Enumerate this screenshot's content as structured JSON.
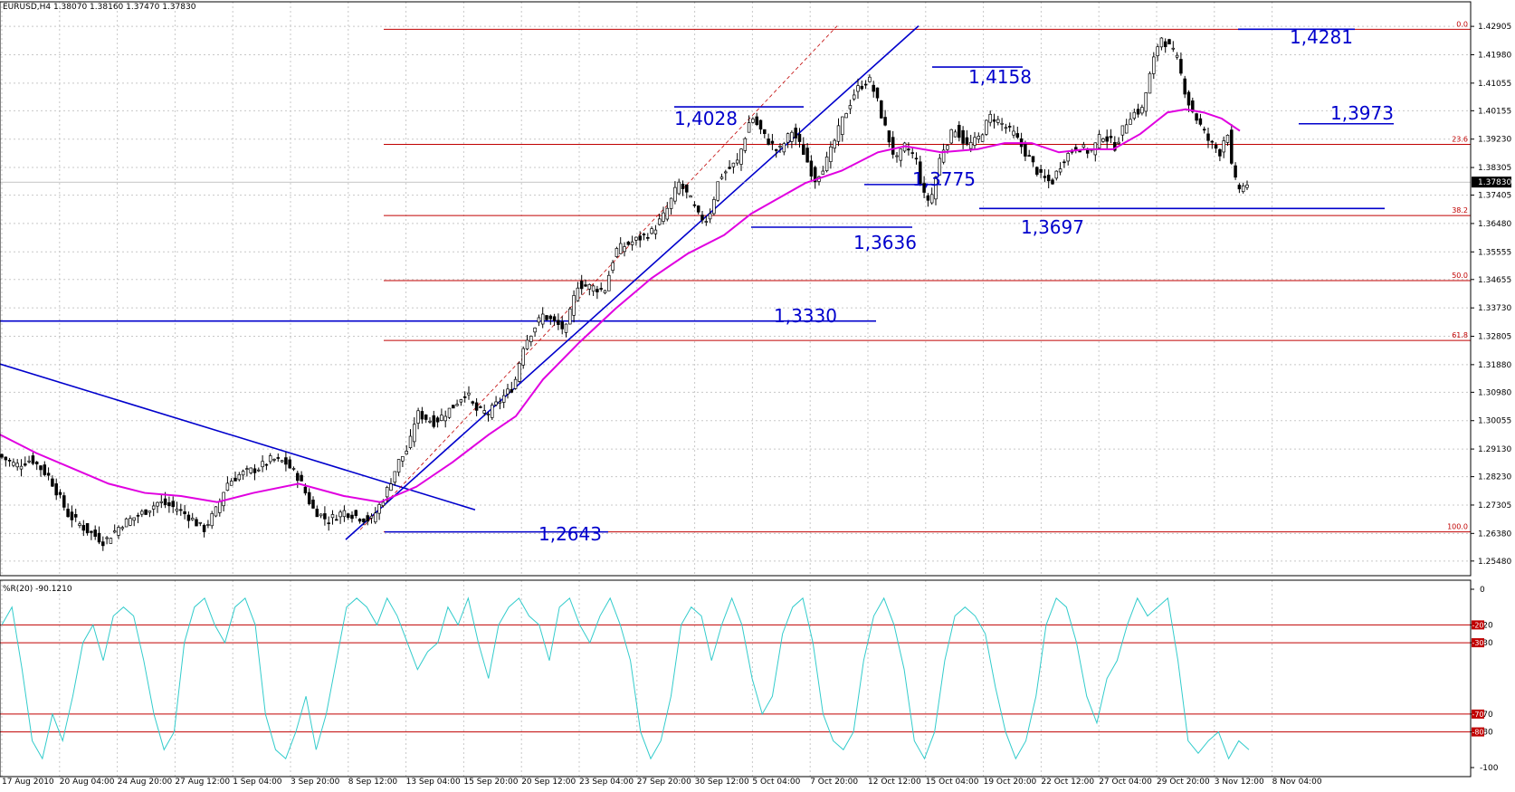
{
  "header": {
    "symbol": "EURUSD,H4",
    "ohlc": "1.38070 1.38160 1.37470 1.37830"
  },
  "chart_data": [
    {
      "type": "candlestick",
      "title": "EURUSD,H4  1.38070 1.38160 1.37470 1.37830",
      "ylim": [
        1.2518,
        1.4341
      ],
      "y_ticks": [
        "1.42905",
        "1.41980",
        "1.41055",
        "1.40155",
        "1.39230",
        "1.38305",
        "1.37405",
        "1.36480",
        "1.35555",
        "1.34655",
        "1.33730",
        "1.32805",
        "1.31880",
        "1.30980",
        "1.30055",
        "1.29130",
        "1.28230",
        "1.27305",
        "1.26380",
        "1.25480"
      ],
      "current_price": "1.37830",
      "time_labels": [
        "17 Aug 2010",
        "20 Aug 04:00",
        "24 Aug 20:00",
        "27 Aug 12:00",
        "1 Sep 04:00",
        "3 Sep 20:00",
        "8 Sep 12:00",
        "13 Sep 04:00",
        "15 Sep 20:00",
        "20 Sep 12:00",
        "23 Sep 04:00",
        "27 Sep 20:00",
        "30 Sep 12:00",
        "5 Oct 04:00",
        "7 Oct 20:00",
        "12 Oct 12:00",
        "15 Oct 04:00",
        "19 Oct 20:00",
        "22 Oct 12:00",
        "27 Oct 04:00",
        "29 Oct 20:00",
        "3 Nov 12:00",
        "8 Nov 04:00"
      ],
      "price_path": [
        [
          0,
          1.289
        ],
        [
          18,
          1.286
        ],
        [
          35,
          1.288
        ],
        [
          55,
          1.282
        ],
        [
          75,
          1.27
        ],
        [
          95,
          1.265
        ],
        [
          115,
          1.261
        ],
        [
          135,
          1.267
        ],
        [
          155,
          1.27
        ],
        [
          175,
          1.274
        ],
        [
          195,
          1.272
        ],
        [
          210,
          1.269
        ],
        [
          225,
          1.265
        ],
        [
          240,
          1.272
        ],
        [
          250,
          1.28
        ],
        [
          265,
          1.283
        ],
        [
          285,
          1.285
        ],
        [
          300,
          1.288
        ],
        [
          315,
          1.287
        ],
        [
          330,
          1.282
        ],
        [
          345,
          1.272
        ],
        [
          362,
          1.268
        ],
        [
          380,
          1.271
        ],
        [
          398,
          1.269
        ],
        [
          410,
          1.268
        ],
        [
          425,
          1.276
        ],
        [
          440,
          1.287
        ],
        [
          452,
          1.292
        ],
        [
          460,
          1.303
        ],
        [
          480,
          1.3
        ],
        [
          500,
          1.305
        ],
        [
          515,
          1.31
        ],
        [
          525,
          1.304
        ],
        [
          540,
          1.303
        ],
        [
          555,
          1.308
        ],
        [
          568,
          1.312
        ],
        [
          578,
          1.325
        ],
        [
          588,
          1.33
        ],
        [
          600,
          1.335
        ],
        [
          615,
          1.332
        ],
        [
          625,
          1.33
        ],
        [
          638,
          1.345
        ],
        [
          655,
          1.344
        ],
        [
          668,
          1.343
        ],
        [
          680,
          1.356
        ],
        [
          700,
          1.359
        ],
        [
          720,
          1.362
        ],
        [
          735,
          1.368
        ],
        [
          750,
          1.378
        ],
        [
          762,
          1.373
        ],
        [
          772,
          1.367
        ],
        [
          782,
          1.366
        ],
        [
          795,
          1.38
        ],
        [
          815,
          1.385
        ],
        [
          830,
          1.4
        ],
        [
          845,
          1.393
        ],
        [
          860,
          1.388
        ],
        [
          875,
          1.395
        ],
        [
          888,
          1.388
        ],
        [
          900,
          1.379
        ],
        [
          915,
          1.386
        ],
        [
          930,
          1.398
        ],
        [
          945,
          1.408
        ],
        [
          960,
          1.412
        ],
        [
          968,
          1.406
        ],
        [
          978,
          1.396
        ],
        [
          990,
          1.385
        ],
        [
          1000,
          1.39
        ],
        [
          1012,
          1.386
        ],
        [
          1020,
          1.374
        ],
        [
          1028,
          1.372
        ],
        [
          1040,
          1.388
        ],
        [
          1055,
          1.396
        ],
        [
          1068,
          1.39
        ],
        [
          1080,
          1.392
        ],
        [
          1095,
          1.4
        ],
        [
          1108,
          1.397
        ],
        [
          1120,
          1.394
        ],
        [
          1135,
          1.387
        ],
        [
          1150,
          1.38
        ],
        [
          1162,
          1.378
        ],
        [
          1175,
          1.386
        ],
        [
          1190,
          1.39
        ],
        [
          1205,
          1.388
        ],
        [
          1218,
          1.394
        ],
        [
          1232,
          1.39
        ],
        [
          1248,
          1.4
        ],
        [
          1262,
          1.402
        ],
        [
          1272,
          1.415
        ],
        [
          1282,
          1.426
        ],
        [
          1290,
          1.423
        ],
        [
          1300,
          1.419
        ],
        [
          1312,
          1.405
        ],
        [
          1322,
          1.399
        ],
        [
          1335,
          1.392
        ],
        [
          1348,
          1.388
        ],
        [
          1356,
          1.396
        ],
        [
          1362,
          1.38
        ],
        [
          1370,
          1.376
        ],
        [
          1380,
          1.3783
        ]
      ],
      "sma": [
        [
          0,
          1.296
        ],
        [
          40,
          1.29
        ],
        [
          80,
          1.285
        ],
        [
          120,
          1.28
        ],
        [
          160,
          1.277
        ],
        [
          200,
          1.276
        ],
        [
          240,
          1.274
        ],
        [
          280,
          1.277
        ],
        [
          330,
          1.28
        ],
        [
          380,
          1.276
        ],
        [
          420,
          1.274
        ],
        [
          460,
          1.279
        ],
        [
          500,
          1.287
        ],
        [
          540,
          1.296
        ],
        [
          570,
          1.302
        ],
        [
          600,
          1.314
        ],
        [
          640,
          1.326
        ],
        [
          680,
          1.337
        ],
        [
          720,
          1.347
        ],
        [
          760,
          1.355
        ],
        [
          800,
          1.361
        ],
        [
          830,
          1.368
        ],
        [
          860,
          1.373
        ],
        [
          890,
          1.378
        ],
        [
          930,
          1.382
        ],
        [
          970,
          1.388
        ],
        [
          1000,
          1.39
        ],
        [
          1040,
          1.388
        ],
        [
          1080,
          1.389
        ],
        [
          1110,
          1.391
        ],
        [
          1140,
          1.391
        ],
        [
          1170,
          1.388
        ],
        [
          1200,
          1.389
        ],
        [
          1230,
          1.389
        ],
        [
          1260,
          1.394
        ],
        [
          1290,
          1.401
        ],
        [
          1310,
          1.402
        ],
        [
          1330,
          1.401
        ],
        [
          1350,
          1.399
        ],
        [
          1370,
          1.395
        ]
      ],
      "fibonacci": {
        "levels": [
          "0.0",
          "23.6",
          "38.2",
          "50.0",
          "61.8",
          "100.0"
        ],
        "values": [
          1.4281,
          1.3906,
          1.3674,
          1.3462,
          1.3267,
          1.2643
        ]
      },
      "annotations": [
        {
          "label": "1,4281",
          "price": 1.4281
        },
        {
          "label": "1,4158",
          "price": 1.4158
        },
        {
          "label": "1,4028",
          "price": 1.4028
        },
        {
          "label": "1,3973",
          "price": 1.3973
        },
        {
          "label": "1,3775",
          "price": 1.3775
        },
        {
          "label": "1,3697",
          "price": 1.3697
        },
        {
          "label": "1,3636",
          "price": 1.3636
        },
        {
          "label": "1,3330",
          "price": 1.333
        },
        {
          "label": "1,2643",
          "price": 1.2643
        }
      ],
      "trendlines": [
        {
          "style": "solid",
          "from": [
            0,
            1.319
          ],
          "to": [
            525,
            1.2715
          ]
        },
        {
          "style": "solid",
          "from": [
            382,
            1.2618
          ],
          "to": [
            1015,
            1.4292
          ]
        },
        {
          "style": "dashed",
          "from": [
            398,
            1.265
          ],
          "to": [
            925,
            1.4292
          ]
        }
      ]
    },
    {
      "type": "line",
      "title": "%R(20) -90.1210",
      "ylim": [
        -100,
        0
      ],
      "y_ticks": [
        "0",
        "-20",
        "-30",
        "-70",
        "-80",
        "-100"
      ],
      "levels": [
        -20,
        -30,
        -70,
        -80
      ],
      "series": [
        {
          "values": [
            -20,
            -10,
            -45,
            -85,
            -95,
            -70,
            -85,
            -60,
            -30,
            -20,
            -40,
            -15,
            -10,
            -15,
            -40,
            -70,
            -90,
            -80,
            -30,
            -10,
            -5,
            -20,
            -30,
            -10,
            -5,
            -20,
            -70,
            -90,
            -95,
            -80,
            -60,
            -90,
            -70,
            -40,
            -10,
            -5,
            -10,
            -20,
            -5,
            -15,
            -30,
            -45,
            -35,
            -30,
            -10,
            -20,
            -5,
            -30,
            -50,
            -20,
            -10,
            -5,
            -15,
            -20,
            -40,
            -10,
            -5,
            -20,
            -30,
            -15,
            -5,
            -20,
            -40,
            -80,
            -95,
            -85,
            -60,
            -20,
            -10,
            -15,
            -40,
            -20,
            -5,
            -20,
            -50,
            -70,
            -60,
            -25,
            -10,
            -5,
            -30,
            -70,
            -85,
            -90,
            -80,
            -40,
            -15,
            -5,
            -20,
            -45,
            -85,
            -95,
            -80,
            -40,
            -15,
            -10,
            -15,
            -25,
            -55,
            -80,
            -95,
            -85,
            -60,
            -20,
            -5,
            -10,
            -30,
            -60,
            -75,
            -50,
            -40,
            -20,
            -5,
            -15,
            -10,
            -5,
            -40,
            -85,
            -92,
            -85,
            -80,
            -95,
            -85,
            -90
          ]
        }
      ]
    }
  ]
}
